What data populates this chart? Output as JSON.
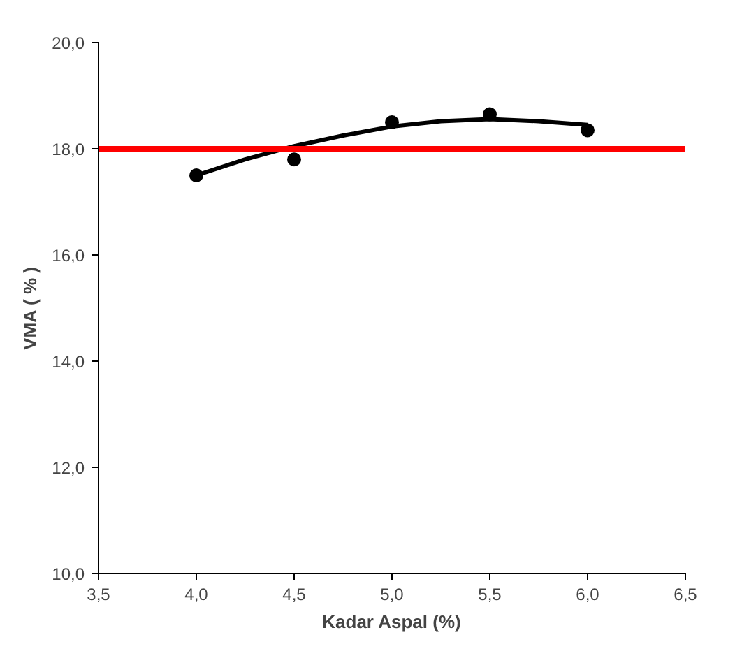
{
  "chart_data": {
    "type": "scatter",
    "xlabel": "Kadar Aspal (%)",
    "ylabel": "VMA ( % )",
    "series": [
      {
        "color": "#000000",
        "marker": "circle",
        "x": [
          4.0,
          4.5,
          5.0,
          5.5,
          6.0
        ],
        "values": [
          17.5,
          17.8,
          18.5,
          18.65,
          18.35
        ]
      },
      {
        "type": "line",
        "color": "#000000",
        "x": [
          4.0,
          4.25,
          4.5,
          4.75,
          5.0,
          5.25,
          5.5,
          5.75,
          6.0
        ],
        "values": [
          17.5,
          17.8,
          18.05,
          18.25,
          18.42,
          18.52,
          18.56,
          18.52,
          18.45
        ]
      }
    ],
    "ref_lines": [
      {
        "axis": "y",
        "value": 18.0,
        "color": "#ff0000"
      }
    ],
    "xlim": [
      3.5,
      6.5
    ],
    "ylim": [
      10,
      20
    ],
    "xticks": [
      {
        "value": 3.5,
        "label": "3,5"
      },
      {
        "value": 4.0,
        "label": "4,0"
      },
      {
        "value": 4.5,
        "label": "4,5"
      },
      {
        "value": 5.0,
        "label": "5,0"
      },
      {
        "value": 5.5,
        "label": "5,5"
      },
      {
        "value": 6.0,
        "label": "6,0"
      },
      {
        "value": 6.5,
        "label": "6,5"
      }
    ],
    "yticks": [
      {
        "value": 10,
        "label": "10,0"
      },
      {
        "value": 12,
        "label": "12,0"
      },
      {
        "value": 14,
        "label": "14,0"
      },
      {
        "value": 16,
        "label": "16,0"
      },
      {
        "value": 18,
        "label": "18,0"
      },
      {
        "value": 20,
        "label": "20,0"
      }
    ],
    "grid": false
  }
}
